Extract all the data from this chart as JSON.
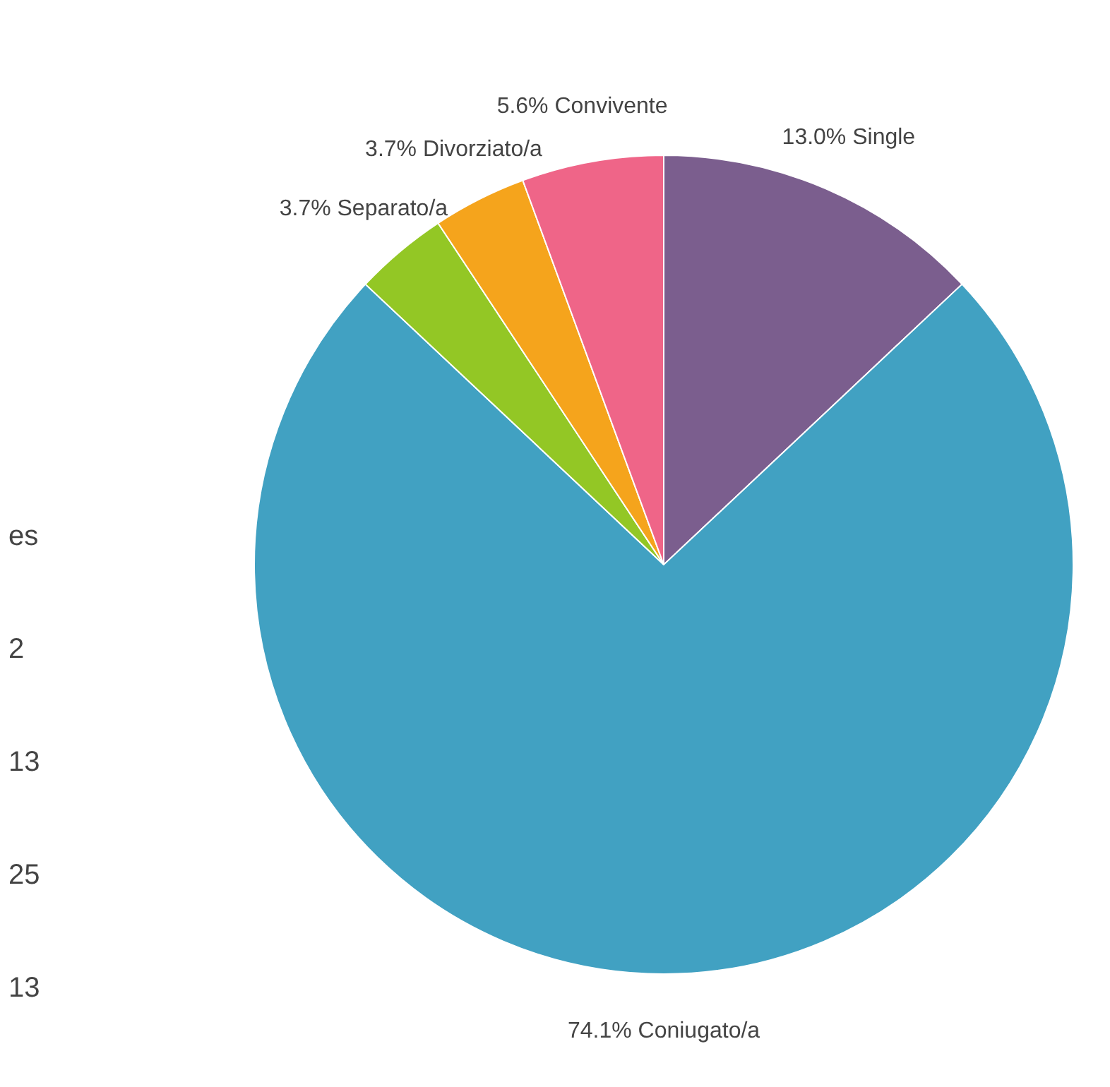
{
  "chart_data": {
    "type": "pie",
    "categories": [
      "Single",
      "Coniugato/a",
      "Separato/a",
      "Divorziato/a",
      "Convivente"
    ],
    "values": [
      13.0,
      74.1,
      3.7,
      3.7,
      5.6
    ],
    "value_labels": [
      "13.0%",
      "74.1%",
      "3.7%",
      "3.7%",
      "5.6%"
    ],
    "colors": [
      "#7b5e8e",
      "#41a1c2",
      "#93c725",
      "#f5a41c",
      "#ef6588"
    ],
    "annotations": [
      "es",
      "2",
      "13",
      "25",
      "13"
    ]
  }
}
